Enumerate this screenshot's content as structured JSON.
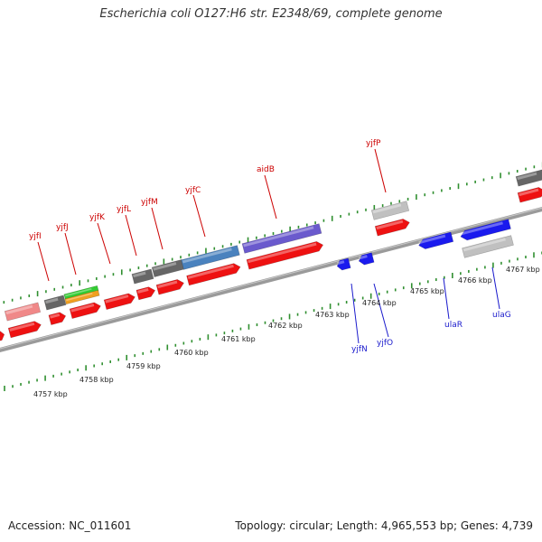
{
  "title": "Escherichia coli O127:H6 str. E2348/69, complete genome",
  "accession": "Accession: NC_011601",
  "summary": "Topology: circular; Length: 4,965,553 bp; Genes: 4,739",
  "colors": {
    "forward_label": "#cc0000",
    "reverse_label": "#1a1acc",
    "ticks": "#2f8f2f",
    "backbone": "#8a8a8a",
    "cds": "#ee1111",
    "cds_reverse": "#1a1aee",
    "gray": "#666666",
    "light_gray": "#c0c0c0",
    "pink": "#f08888",
    "green": "#33cc33",
    "orange": "#f0a020",
    "steel_blue": "#4a82be",
    "purple": "#6a5acd"
  },
  "kbp_labels": [
    "4757 kbp",
    "4758 kbp",
    "4759 kbp",
    "4760 kbp",
    "4761 kbp",
    "4762 kbp",
    "4763 kbp",
    "4764 kbp",
    "4765 kbp",
    "4766 kbp",
    "4767 kbp"
  ],
  "forward_genes": [
    "yjfI",
    "yjfJ",
    "yjfK",
    "yjfL",
    "yjfM",
    "yjfC",
    "aidB",
    "yjfP"
  ],
  "reverse_genes": [
    "yjfN",
    "yjfO",
    "ulaR",
    "ulaG"
  ]
}
